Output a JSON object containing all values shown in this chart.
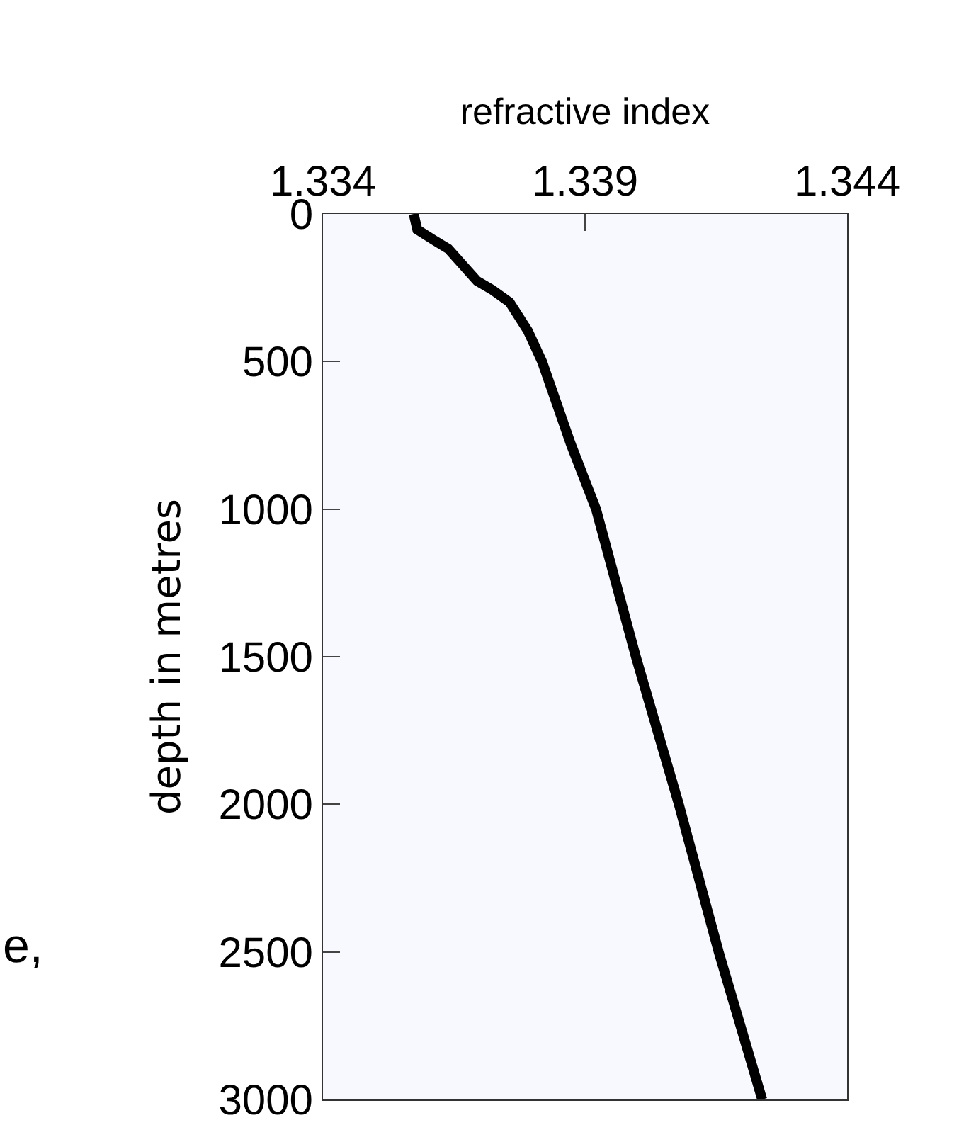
{
  "chart_data": {
    "type": "line",
    "xlabel": "refractive index",
    "ylabel": "depth in metres",
    "xlim": [
      1.334,
      1.344
    ],
    "xticks": [
      1.334,
      1.339,
      1.344
    ],
    "ylim": [
      3000,
      0
    ],
    "yticks": [
      0,
      500,
      1000,
      1500,
      2000,
      2500,
      3000
    ],
    "series": [
      {
        "color": "#000000",
        "x": [
          1.33573,
          1.3358,
          1.33612,
          1.33639,
          1.33694,
          1.33722,
          1.33756,
          1.33791,
          1.33818,
          1.33873,
          1.33921,
          1.33997,
          1.34079,
          1.34155,
          1.34238
        ],
        "values": [
          0,
          53,
          89,
          118,
          227,
          256,
          299,
          396,
          500,
          780,
          1000,
          1500,
          2000,
          2500,
          3000
        ]
      }
    ],
    "annotations": [
      "e,"
    ],
    "grid": false,
    "marker": "none",
    "line_style": "solid"
  }
}
